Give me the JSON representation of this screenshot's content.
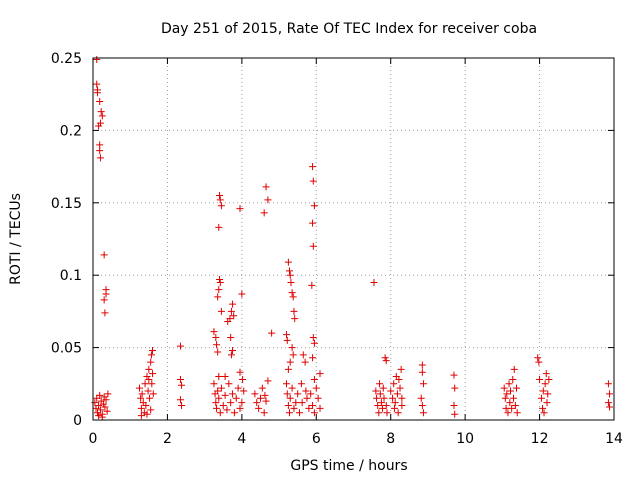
{
  "chart_data": {
    "type": "scatter",
    "title": "Day 251 of 2015, Rate Of TEC Index for receiver coba",
    "xlabel": "GPS time / hours",
    "ylabel": "ROTI / TECUs",
    "xlim": [
      0,
      14
    ],
    "ylim": [
      0,
      0.25
    ],
    "grid": true,
    "marker": "plus",
    "color": "#e00000",
    "xticks": [
      0,
      2,
      4,
      6,
      8,
      10,
      12,
      14
    ],
    "xtick_labels": [
      "0",
      "2",
      "4",
      "6",
      "8",
      "10",
      "12",
      "14"
    ],
    "yticks": [
      0,
      0.05,
      0.1,
      0.15,
      0.2,
      0.25
    ],
    "ytick_labels": [
      "0",
      "0.05",
      "0.1",
      "0.15",
      "0.2",
      "0.25"
    ],
    "series": [
      {
        "name": "ROTI",
        "points": [
          [
            0.1,
            0.249
          ],
          [
            0.1,
            0.232
          ],
          [
            0.12,
            0.228
          ],
          [
            0.12,
            0.226
          ],
          [
            0.18,
            0.22
          ],
          [
            0.22,
            0.213
          ],
          [
            0.25,
            0.21
          ],
          [
            0.2,
            0.205
          ],
          [
            0.15,
            0.203
          ],
          [
            0.18,
            0.19
          ],
          [
            0.18,
            0.186
          ],
          [
            0.2,
            0.181
          ],
          [
            0.3,
            0.114
          ],
          [
            0.35,
            0.09
          ],
          [
            0.35,
            0.087
          ],
          [
            0.3,
            0.083
          ],
          [
            0.32,
            0.074
          ],
          [
            0.05,
            0.012
          ],
          [
            0.08,
            0.008
          ],
          [
            0.1,
            0.015
          ],
          [
            0.12,
            0.005
          ],
          [
            0.15,
            0.01
          ],
          [
            0.18,
            0.017
          ],
          [
            0.2,
            0.007
          ],
          [
            0.22,
            0.013
          ],
          [
            0.25,
            0.004
          ],
          [
            0.28,
            0.011
          ],
          [
            0.3,
            0.016
          ],
          [
            0.32,
            0.009
          ],
          [
            0.35,
            0.014
          ],
          [
            0.38,
            0.006
          ],
          [
            0.4,
            0.018
          ],
          [
            0.15,
            0.003
          ],
          [
            0.25,
            0.002
          ],
          [
            1.25,
            0.022
          ],
          [
            1.28,
            0.015
          ],
          [
            1.3,
            0.008
          ],
          [
            1.32,
            0.018
          ],
          [
            1.35,
            0.012
          ],
          [
            1.38,
            0.005
          ],
          [
            1.4,
            0.025
          ],
          [
            1.42,
            0.01
          ],
          [
            1.45,
            0.03
          ],
          [
            1.48,
            0.02
          ],
          [
            1.5,
            0.035
          ],
          [
            1.52,
            0.015
          ],
          [
            1.55,
            0.04
          ],
          [
            1.57,
            0.045
          ],
          [
            1.58,
            0.025
          ],
          [
            1.6,
            0.048
          ],
          [
            1.6,
            0.032
          ],
          [
            1.62,
            0.018
          ],
          [
            1.3,
            0.003
          ],
          [
            1.45,
            0.004
          ],
          [
            1.55,
            0.007
          ],
          [
            1.5,
            0.028
          ],
          [
            2.35,
            0.051
          ],
          [
            2.35,
            0.028
          ],
          [
            2.38,
            0.024
          ],
          [
            2.35,
            0.014
          ],
          [
            2.38,
            0.01
          ],
          [
            3.25,
            0.061
          ],
          [
            3.3,
            0.057
          ],
          [
            3.32,
            0.052
          ],
          [
            3.35,
            0.047
          ],
          [
            3.38,
            0.03
          ],
          [
            3.4,
            0.155
          ],
          [
            3.42,
            0.152
          ],
          [
            3.45,
            0.148
          ],
          [
            3.38,
            0.133
          ],
          [
            3.4,
            0.097
          ],
          [
            3.42,
            0.095
          ],
          [
            3.38,
            0.09
          ],
          [
            3.35,
            0.085
          ],
          [
            3.45,
            0.075
          ],
          [
            3.25,
            0.025
          ],
          [
            3.28,
            0.018
          ],
          [
            3.3,
            0.012
          ],
          [
            3.32,
            0.008
          ],
          [
            3.35,
            0.02
          ],
          [
            3.38,
            0.015
          ],
          [
            3.42,
            0.005
          ],
          [
            3.45,
            0.022
          ],
          [
            3.5,
            0.01
          ],
          [
            3.55,
            0.017
          ],
          [
            3.6,
            0.007
          ],
          [
            3.65,
            0.025
          ],
          [
            3.7,
            0.012
          ],
          [
            3.75,
            0.018
          ],
          [
            3.8,
            0.005
          ],
          [
            3.85,
            0.015
          ],
          [
            3.9,
            0.022
          ],
          [
            3.95,
            0.008
          ],
          [
            4.0,
            0.012
          ],
          [
            4.05,
            0.02
          ],
          [
            3.55,
            0.03
          ],
          [
            3.62,
            0.068
          ],
          [
            3.68,
            0.07
          ],
          [
            3.72,
            0.075
          ],
          [
            3.75,
            0.08
          ],
          [
            3.78,
            0.072
          ],
          [
            3.7,
            0.057
          ],
          [
            3.75,
            0.048
          ],
          [
            3.72,
            0.045
          ],
          [
            3.95,
            0.146
          ],
          [
            4.0,
            0.087
          ],
          [
            3.95,
            0.033
          ],
          [
            4.02,
            0.028
          ],
          [
            4.35,
            0.018
          ],
          [
            4.4,
            0.012
          ],
          [
            4.45,
            0.008
          ],
          [
            4.5,
            0.015
          ],
          [
            4.55,
            0.022
          ],
          [
            4.6,
            0.005
          ],
          [
            4.62,
            0.017
          ],
          [
            4.65,
            0.013
          ],
          [
            4.6,
            0.143
          ],
          [
            4.65,
            0.161
          ],
          [
            4.7,
            0.152
          ],
          [
            4.7,
            0.027
          ],
          [
            4.8,
            0.06
          ],
          [
            5.2,
            0.059
          ],
          [
            5.22,
            0.055
          ],
          [
            5.25,
            0.109
          ],
          [
            5.28,
            0.103
          ],
          [
            5.3,
            0.1
          ],
          [
            5.32,
            0.095
          ],
          [
            5.35,
            0.088
          ],
          [
            5.38,
            0.085
          ],
          [
            5.4,
            0.075
          ],
          [
            5.42,
            0.07
          ],
          [
            5.35,
            0.05
          ],
          [
            5.38,
            0.045
          ],
          [
            5.3,
            0.04
          ],
          [
            5.25,
            0.035
          ],
          [
            5.2,
            0.025
          ],
          [
            5.22,
            0.018
          ],
          [
            5.25,
            0.01
          ],
          [
            5.28,
            0.005
          ],
          [
            5.3,
            0.015
          ],
          [
            5.35,
            0.022
          ],
          [
            5.4,
            0.008
          ],
          [
            5.45,
            0.012
          ],
          [
            5.5,
            0.018
          ],
          [
            5.55,
            0.005
          ],
          [
            5.6,
            0.025
          ],
          [
            5.62,
            0.012
          ],
          [
            5.65,
            0.045
          ],
          [
            5.7,
            0.04
          ],
          [
            5.72,
            0.02
          ],
          [
            5.75,
            0.015
          ],
          [
            5.8,
            0.008
          ],
          [
            5.85,
            0.018
          ],
          [
            5.9,
            0.01
          ],
          [
            5.9,
            0.175
          ],
          [
            5.92,
            0.165
          ],
          [
            5.95,
            0.148
          ],
          [
            5.9,
            0.136
          ],
          [
            5.92,
            0.12
          ],
          [
            5.88,
            0.093
          ],
          [
            5.92,
            0.057
          ],
          [
            5.95,
            0.053
          ],
          [
            5.9,
            0.043
          ],
          [
            5.95,
            0.028
          ],
          [
            6.0,
            0.022
          ],
          [
            6.05,
            0.015
          ],
          [
            6.1,
            0.008
          ],
          [
            6.1,
            0.032
          ],
          [
            5.95,
            0.005
          ],
          [
            7.55,
            0.095
          ],
          [
            7.6,
            0.02
          ],
          [
            7.62,
            0.015
          ],
          [
            7.65,
            0.01
          ],
          [
            7.68,
            0.005
          ],
          [
            7.7,
            0.025
          ],
          [
            7.72,
            0.018
          ],
          [
            7.75,
            0.012
          ],
          [
            7.78,
            0.008
          ],
          [
            7.8,
            0.022
          ],
          [
            7.82,
            0.015
          ],
          [
            7.85,
            0.043
          ],
          [
            7.88,
            0.041
          ],
          [
            7.88,
            0.01
          ],
          [
            7.9,
            0.005
          ],
          [
            8.0,
            0.02
          ],
          [
            8.05,
            0.015
          ],
          [
            8.08,
            0.025
          ],
          [
            8.1,
            0.008
          ],
          [
            8.12,
            0.012
          ],
          [
            8.15,
            0.03
          ],
          [
            8.18,
            0.018
          ],
          [
            8.2,
            0.005
          ],
          [
            8.22,
            0.028
          ],
          [
            8.25,
            0.022
          ],
          [
            8.28,
            0.035
          ],
          [
            8.3,
            0.01
          ],
          [
            8.3,
            0.015
          ],
          [
            8.85,
            0.038
          ],
          [
            8.85,
            0.033
          ],
          [
            8.88,
            0.025
          ],
          [
            8.82,
            0.015
          ],
          [
            8.85,
            0.01
          ],
          [
            8.88,
            0.005
          ],
          [
            9.7,
            0.031
          ],
          [
            9.72,
            0.022
          ],
          [
            9.7,
            0.01
          ],
          [
            9.72,
            0.004
          ],
          [
            11.05,
            0.022
          ],
          [
            11.08,
            0.015
          ],
          [
            11.1,
            0.008
          ],
          [
            11.12,
            0.018
          ],
          [
            11.15,
            0.005
          ],
          [
            11.18,
            0.025
          ],
          [
            11.2,
            0.012
          ],
          [
            11.22,
            0.02
          ],
          [
            11.25,
            0.008
          ],
          [
            11.28,
            0.028
          ],
          [
            11.3,
            0.015
          ],
          [
            11.32,
            0.035
          ],
          [
            11.35,
            0.01
          ],
          [
            11.38,
            0.022
          ],
          [
            11.4,
            0.005
          ],
          [
            11.95,
            0.043
          ],
          [
            11.98,
            0.04
          ],
          [
            12.0,
            0.028
          ],
          [
            12.05,
            0.015
          ],
          [
            12.08,
            0.008
          ],
          [
            12.1,
            0.02
          ],
          [
            12.12,
            0.005
          ],
          [
            12.15,
            0.025
          ],
          [
            12.18,
            0.032
          ],
          [
            12.2,
            0.012
          ],
          [
            12.22,
            0.018
          ],
          [
            12.25,
            0.028
          ],
          [
            13.85,
            0.025
          ],
          [
            13.88,
            0.018
          ],
          [
            13.85,
            0.012
          ],
          [
            13.88,
            0.009
          ]
        ]
      }
    ]
  }
}
